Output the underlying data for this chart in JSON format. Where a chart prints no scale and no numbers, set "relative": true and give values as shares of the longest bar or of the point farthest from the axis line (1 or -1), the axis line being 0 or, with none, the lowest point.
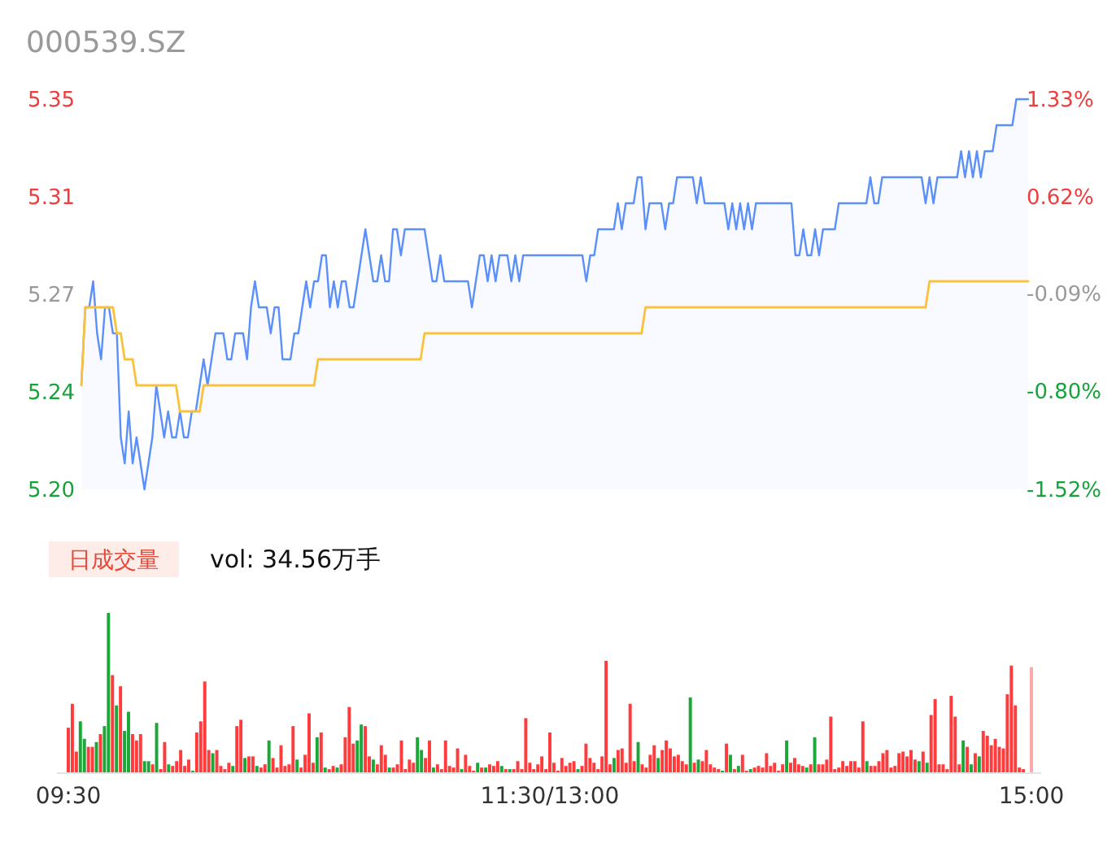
{
  "chart_data": [
    {
      "type": "line",
      "title": "000539.SZ",
      "categories": [
        null,
        null,
        null,
        null,
        null,
        null,
        null,
        null,
        null,
        null,
        null,
        null,
        null,
        null,
        null,
        null,
        null,
        null,
        null,
        null,
        null,
        null,
        null,
        null,
        null,
        null,
        null,
        null,
        null,
        null,
        null,
        null,
        null,
        null,
        null,
        null,
        null,
        null,
        null,
        null,
        null,
        null,
        null,
        null,
        null,
        null,
        null,
        null,
        null,
        null,
        null,
        null,
        null,
        null,
        null,
        null,
        null,
        null,
        null,
        null,
        null,
        null,
        null,
        null,
        null,
        null,
        null,
        null,
        null,
        null,
        null,
        null,
        null,
        null,
        null,
        null,
        null,
        null,
        null,
        null,
        null,
        null,
        null,
        null,
        null,
        null,
        null,
        null,
        null,
        null,
        null,
        null,
        null,
        null,
        null,
        null,
        null,
        null,
        null,
        null,
        null,
        null,
        null,
        null,
        null,
        null,
        null,
        null,
        null,
        null,
        null,
        null,
        null,
        null,
        null,
        null,
        null,
        null,
        null,
        null,
        null,
        null,
        null,
        null,
        null,
        null,
        null,
        null,
        null,
        null,
        null,
        null,
        null,
        null,
        null,
        null,
        null,
        null,
        null,
        null,
        null,
        null,
        null,
        null,
        null,
        null,
        null,
        null,
        null,
        null,
        null,
        null,
        null,
        null,
        null,
        null,
        null,
        null,
        null,
        null,
        null,
        null,
        null,
        null,
        null,
        null,
        null,
        null,
        null,
        null,
        null,
        null,
        null,
        null,
        null,
        null,
        null,
        null,
        null,
        null,
        null,
        null,
        null,
        null,
        null,
        null,
        null,
        null,
        null,
        null,
        null,
        null,
        null,
        null,
        null,
        null,
        null,
        null,
        null,
        null,
        null,
        null,
        null,
        null,
        null,
        null,
        null,
        null,
        null,
        null,
        null,
        null,
        null,
        null,
        null,
        null,
        null,
        null,
        null,
        null,
        null,
        null,
        null,
        null,
        null,
        null,
        null,
        null,
        null,
        null,
        null,
        null,
        null,
        null,
        null,
        null,
        null,
        null,
        null,
        null,
        null
      ],
      "ylim": [
        5.2,
        5.35
      ],
      "yticks": [
        {
          "value": 5.2,
          "label": "5.20"
        },
        {
          "value": 5.2375,
          "label": "5.24"
        },
        {
          "value": 5.275,
          "label": "5.27"
        },
        {
          "value": 5.3125,
          "label": "5.31"
        },
        {
          "value": 5.35,
          "label": "5.35"
        }
      ],
      "y2lim": [
        -1.52,
        1.33
      ],
      "y2ticks": [
        {
          "value": -1.52,
          "label": "-1.52%"
        },
        {
          "value": -0.8,
          "label": "-0.80%"
        },
        {
          "value": -0.09,
          "label": "-0.09%"
        },
        {
          "value": 0.62,
          "label": "0.62%"
        },
        {
          "value": 1.33,
          "label": "1.33%"
        }
      ],
      "series": [
        {
          "type": "area",
          "color": "#5b8ff9",
          "values": [
            5.24,
            5.27,
            5.27,
            5.28,
            5.26,
            5.25,
            5.27,
            5.27,
            5.26,
            5.26,
            5.22,
            5.21,
            5.23,
            5.21,
            5.22,
            5.21,
            5.2,
            5.21,
            5.22,
            5.24,
            5.23,
            5.22,
            5.23,
            5.22,
            5.22,
            5.23,
            5.22,
            5.22,
            5.23,
            5.23,
            5.24,
            5.25,
            5.24,
            5.25,
            5.26,
            5.26,
            5.26,
            5.25,
            5.25,
            5.26,
            5.26,
            5.26,
            5.25,
            5.27,
            5.28,
            5.27,
            5.27,
            5.27,
            5.26,
            5.27,
            5.27,
            5.25,
            5.25,
            5.25,
            5.26,
            5.26,
            5.27,
            5.28,
            5.27,
            5.28,
            5.28,
            5.29,
            5.29,
            5.27,
            5.28,
            5.27,
            5.28,
            5.28,
            5.27,
            5.27,
            5.28,
            5.29,
            5.3,
            5.29,
            5.28,
            5.28,
            5.29,
            5.28,
            5.28,
            5.3,
            5.3,
            5.29,
            5.3,
            5.3,
            5.3,
            5.3,
            5.3,
            5.3,
            5.29,
            5.28,
            5.28,
            5.29,
            5.28,
            5.28,
            5.28,
            5.28,
            5.28,
            5.28,
            5.28,
            5.27,
            5.28,
            5.29,
            5.29,
            5.28,
            5.29,
            5.28,
            5.29,
            5.29,
            5.29,
            5.28,
            5.29,
            5.28,
            5.29,
            5.29,
            5.29,
            5.29,
            5.29,
            5.29,
            5.29,
            5.29,
            5.29,
            5.29,
            5.29,
            5.29,
            5.29,
            5.29,
            5.29,
            5.29,
            5.28,
            5.29,
            5.29,
            5.3,
            5.3,
            5.3,
            5.3,
            5.3,
            5.31,
            5.3,
            5.31,
            5.31,
            5.31,
            5.32,
            5.32,
            5.3,
            5.31,
            5.31,
            5.31,
            5.31,
            5.3,
            5.31,
            5.31,
            5.32,
            5.32,
            5.32,
            5.32,
            5.32,
            5.31,
            5.32,
            5.31,
            5.31,
            5.31,
            5.31,
            5.31,
            5.31,
            5.3,
            5.31,
            5.3,
            5.31,
            5.3,
            5.31,
            5.3,
            5.31,
            5.31,
            5.31,
            5.31,
            5.31,
            5.31,
            5.31,
            5.31,
            5.31,
            5.31,
            5.29,
            5.29,
            5.3,
            5.29,
            5.29,
            5.3,
            5.29,
            5.3,
            5.3,
            5.3,
            5.3,
            5.31,
            5.31,
            5.31,
            5.31,
            5.31,
            5.31,
            5.31,
            5.31,
            5.32,
            5.31,
            5.31,
            5.32,
            5.32,
            5.32,
            5.32,
            5.32,
            5.32,
            5.32,
            5.32,
            5.32,
            5.32,
            5.32,
            5.31,
            5.32,
            5.31,
            5.32,
            5.32,
            5.32,
            5.32,
            5.32,
            5.32,
            5.33,
            5.32,
            5.33,
            5.32,
            5.33,
            5.32,
            5.33,
            5.33,
            5.33,
            5.34,
            5.34,
            5.34,
            5.34,
            5.34,
            5.35,
            5.35,
            5.35,
            5.35
          ]
        },
        {
          "type": "line",
          "color": "#f9c23c",
          "values": [
            5.24,
            5.27,
            5.27,
            5.27,
            5.27,
            5.27,
            5.27,
            5.27,
            5.27,
            5.26,
            5.26,
            5.25,
            5.25,
            5.25,
            5.24,
            5.24,
            5.24,
            5.24,
            5.24,
            5.24,
            5.24,
            5.24,
            5.24,
            5.24,
            5.24,
            5.23,
            5.23,
            5.23,
            5.23,
            5.23,
            5.23,
            5.24,
            5.24,
            5.24,
            5.24,
            5.24,
            5.24,
            5.24,
            5.24,
            5.24,
            5.24,
            5.24,
            5.24,
            5.24,
            5.24,
            5.24,
            5.24,
            5.24,
            5.24,
            5.24,
            5.24,
            5.24,
            5.24,
            5.24,
            5.24,
            5.24,
            5.24,
            5.24,
            5.24,
            5.24,
            5.25,
            5.25,
            5.25,
            5.25,
            5.25,
            5.25,
            5.25,
            5.25,
            5.25,
            5.25,
            5.25,
            5.25,
            5.25,
            5.25,
            5.25,
            5.25,
            5.25,
            5.25,
            5.25,
            5.25,
            5.25,
            5.25,
            5.25,
            5.25,
            5.25,
            5.25,
            5.25,
            5.26,
            5.26,
            5.26,
            5.26,
            5.26,
            5.26,
            5.26,
            5.26,
            5.26,
            5.26,
            5.26,
            5.26,
            5.26,
            5.26,
            5.26,
            5.26,
            5.26,
            5.26,
            5.26,
            5.26,
            5.26,
            5.26,
            5.26,
            5.26,
            5.26,
            5.26,
            5.26,
            5.26,
            5.26,
            5.26,
            5.26,
            5.26,
            5.26,
            5.26,
            5.26,
            5.26,
            5.26,
            5.26,
            5.26,
            5.26,
            5.26,
            5.26,
            5.26,
            5.26,
            5.26,
            5.26,
            5.26,
            5.26,
            5.26,
            5.26,
            5.26,
            5.26,
            5.26,
            5.26,
            5.26,
            5.26,
            5.27,
            5.27,
            5.27,
            5.27,
            5.27,
            5.27,
            5.27,
            5.27,
            5.27,
            5.27,
            5.27,
            5.27,
            5.27,
            5.27,
            5.27,
            5.27,
            5.27,
            5.27,
            5.27,
            5.27,
            5.27,
            5.27,
            5.27,
            5.27,
            5.27,
            5.27,
            5.27,
            5.27,
            5.27,
            5.27,
            5.27,
            5.27,
            5.27,
            5.27,
            5.27,
            5.27,
            5.27,
            5.27,
            5.27,
            5.27,
            5.27,
            5.27,
            5.27,
            5.27,
            5.27,
            5.27,
            5.27,
            5.27,
            5.27,
            5.27,
            5.27,
            5.27,
            5.27,
            5.27,
            5.27,
            5.27,
            5.27,
            5.27,
            5.27,
            5.27,
            5.27,
            5.27,
            5.27,
            5.27,
            5.27,
            5.27,
            5.27,
            5.27,
            5.27,
            5.27,
            5.27,
            5.27,
            5.28,
            5.28,
            5.28,
            5.28,
            5.28,
            5.28,
            5.28,
            5.28,
            5.28,
            5.28,
            5.28,
            5.28,
            5.28,
            5.28,
            5.28,
            5.28,
            5.28,
            5.28,
            5.28,
            5.28,
            5.28,
            5.28,
            5.28,
            5.28,
            5.28,
            5.28
          ]
        }
      ]
    },
    {
      "type": "bar",
      "title": "日成交量",
      "subtitle": "vol: 34.56万手",
      "relative": true,
      "tick_labels": "x",
      "categories": [
        "09:30",
        null,
        null,
        null,
        null,
        null,
        null,
        null,
        null,
        null,
        null,
        null,
        null,
        null,
        null,
        null,
        null,
        null,
        null,
        null,
        null,
        null,
        null,
        null,
        null,
        null,
        null,
        null,
        null,
        null,
        null,
        null,
        null,
        null,
        null,
        null,
        null,
        null,
        null,
        null,
        null,
        null,
        null,
        null,
        null,
        null,
        null,
        null,
        null,
        null,
        null,
        null,
        null,
        null,
        null,
        null,
        null,
        null,
        null,
        null,
        null,
        null,
        null,
        null,
        null,
        null,
        null,
        null,
        null,
        null,
        null,
        null,
        null,
        null,
        null,
        null,
        null,
        null,
        null,
        null,
        null,
        null,
        null,
        null,
        null,
        null,
        null,
        null,
        null,
        null,
        null,
        null,
        null,
        null,
        null,
        null,
        null,
        null,
        null,
        null,
        null,
        null,
        null,
        null,
        null,
        null,
        null,
        null,
        null,
        null,
        null,
        null,
        null,
        null,
        null,
        null,
        null,
        null,
        null,
        null,
        "11:30/13:00",
        null,
        null,
        null,
        null,
        null,
        null,
        null,
        null,
        null,
        null,
        null,
        null,
        null,
        null,
        null,
        null,
        null,
        null,
        null,
        null,
        null,
        null,
        null,
        null,
        null,
        null,
        null,
        null,
        null,
        null,
        null,
        null,
        null,
        null,
        null,
        null,
        null,
        null,
        null,
        null,
        null,
        null,
        null,
        null,
        null,
        null,
        null,
        null,
        null,
        null,
        null,
        null,
        null,
        null,
        null,
        null,
        null,
        null,
        null,
        null,
        null,
        null,
        null,
        null,
        null,
        null,
        null,
        null,
        null,
        null,
        null,
        null,
        null,
        null,
        null,
        null,
        null,
        null,
        null,
        null,
        null,
        null,
        null,
        null,
        null,
        null,
        null,
        null,
        null,
        null,
        null,
        null,
        null,
        null,
        null,
        null,
        null,
        null,
        null,
        null,
        null,
        null,
        null,
        null,
        null,
        null,
        null,
        null,
        null,
        null,
        null,
        null,
        null,
        null,
        null,
        null,
        null,
        null,
        null,
        "15:00"
      ],
      "values": [
        0.28,
        0.43,
        0.13,
        0.32,
        0.21,
        0.16,
        0.16,
        0.19,
        0.24,
        0.29,
        1,
        0.61,
        0.42,
        0.54,
        0.26,
        0.38,
        0.24,
        0.2,
        0.24,
        0.07,
        0.07,
        0.05,
        0.31,
        0.02,
        0.19,
        0.05,
        0.04,
        0.07,
        0.14,
        0.04,
        0.08,
        0.01,
        0.25,
        0.32,
        0.57,
        0.14,
        0.12,
        0.14,
        0.04,
        0.02,
        0.06,
        0.04,
        0.29,
        0.33,
        0.09,
        0.1,
        0.1,
        0.04,
        0.03,
        0.05,
        0.2,
        0.09,
        0.03,
        0.17,
        0.04,
        0.05,
        0.29,
        0.08,
        0.03,
        0.11,
        0.37,
        0.06,
        0.22,
        0.25,
        0.03,
        0.02,
        0.04,
        0.03,
        0.05,
        0.22,
        0.41,
        0.18,
        0.2,
        0.3,
        0.29,
        0.1,
        0.08,
        0.05,
        0.17,
        0.11,
        0.03,
        0.03,
        0.05,
        0.2,
        0.02,
        0.08,
        0.06,
        0.22,
        0.14,
        0.09,
        0.2,
        0.03,
        0.05,
        0.02,
        0.2,
        0.04,
        0.03,
        0.15,
        0.02,
        0.11,
        0.04,
        0.01,
        0.06,
        0.03,
        0.03,
        0.05,
        0.04,
        0.07,
        0.04,
        0.02,
        0.02,
        0.02,
        0.07,
        0.02,
        0.34,
        0.06,
        0.02,
        0.05,
        0.1,
        0.02,
        0.25,
        0.06,
        0.01,
        0.09,
        0.04,
        0.06,
        0.07,
        0.02,
        0.04,
        0.18,
        0.09,
        0.06,
        0.02,
        0.1,
        0.7,
        0.05,
        0.09,
        0.14,
        0.15,
        0.06,
        0.43,
        0.07,
        0.19,
        0.05,
        0.03,
        0.11,
        0.17,
        0.09,
        0.14,
        0.2,
        0.15,
        0.1,
        0.11,
        0.07,
        0.05,
        0.47,
        0.06,
        0.08,
        0.07,
        0.14,
        0.05,
        0.03,
        0.02,
        0.01,
        0.18,
        0.11,
        0.02,
        0.04,
        0.11,
        0.01,
        0.02,
        0.03,
        0.04,
        0.03,
        0.12,
        0.04,
        0.06,
        0.01,
        0.05,
        0.2,
        0.06,
        0.09,
        0.05,
        0.04,
        0.03,
        0.05,
        0.22,
        0.05,
        0.05,
        0.08,
        0.35,
        0.02,
        0.03,
        0.07,
        0.04,
        0.07,
        0.07,
        0.03,
        0.32,
        0.07,
        0.04,
        0.04,
        0.07,
        0.12,
        0.14,
        0.03,
        0.04,
        0.12,
        0.13,
        0.1,
        0.14,
        0.08,
        0.07,
        0.13,
        0.06,
        0.36,
        0.46,
        0.05,
        0.05,
        0.02,
        0.48,
        0.35,
        0.05,
        0.2,
        0.16,
        0.05,
        0.12,
        0.1,
        0.26,
        0.23,
        0.17,
        0.21,
        0.16,
        0.15,
        0.49,
        0.67,
        0.42,
        0.03,
        0.02,
        null,
        0.66
      ],
      "colors": [
        "#ff3b3b",
        "#ff3b3b",
        "#ff3b3b",
        "#1ca838",
        "#1ca838",
        "#ff3b3b",
        "#ff3b3b",
        "#1ca838",
        "#ff3b3b",
        "#1ca838",
        "#1ca838",
        "#ff3b3b",
        "#1ca838",
        "#ff3b3b",
        "#1ca838",
        "#1ca838",
        "#ff3b3b",
        "#ff3b3b",
        "#ff3b3b",
        "#1ca838",
        "#1ca838",
        "#ff3b3b",
        "#1ca838",
        "#ff3b3b",
        "#ff3b3b",
        "#1ca838",
        "#ff3b3b",
        "#ff3b3b",
        "#ff3b3b",
        "#ff3b3b",
        "#ff3b3b",
        "#1ca838",
        "#ff3b3b",
        "#ff3b3b",
        "#ff3b3b",
        "#ff3b3b",
        "#1ca838",
        "#ff3b3b",
        "#ff3b3b",
        "#ff3b3b",
        "#ff3b3b",
        "#1ca838",
        "#ff3b3b",
        "#ff3b3b",
        "#1ca838",
        "#ff3b3b",
        "#ff3b3b",
        "#1ca838",
        "#ff3b3b",
        "#ff3b3b",
        "#1ca838",
        "#ff3b3b",
        "#ff3b3b",
        "#ff3b3b",
        "#ff3b3b",
        "#ff3b3b",
        "#ff3b3b",
        "#1ca838",
        "#ff3b3b",
        "#ff3b3b",
        "#ff3b3b",
        "#ff3b3b",
        "#1ca838",
        "#ff3b3b",
        "#1ca838",
        "#ff3b3b",
        "#ff3b3b",
        "#1ca838",
        "#ff3b3b",
        "#ff3b3b",
        "#ff3b3b",
        "#ff3b3b",
        "#1ca838",
        "#1ca838",
        "#ff3b3b",
        "#ff3b3b",
        "#1ca838",
        "#ff3b3b",
        "#ff3b3b",
        "#ff3b3b",
        "#1ca838",
        "#ff3b3b",
        "#ff3b3b",
        "#ff3b3b",
        "#ff3b3b",
        "#ff3b3b",
        "#ff3b3b",
        "#1ca838",
        "#1ca838",
        "#ff3b3b",
        "#ff3b3b",
        "#1ca838",
        "#ff3b3b",
        "#ff3b3b",
        "#ff3b3b",
        "#ff3b3b",
        "#ff3b3b",
        "#ff3b3b",
        "#1ca838",
        "#ff3b3b",
        "#ff3b3b",
        "#ff3b3b",
        "#1ca838",
        "#ff3b3b",
        "#1ca838",
        "#ff3b3b",
        "#ff3b3b",
        "#ff3b3b",
        "#1ca838",
        "#ff3b3b",
        "#1ca838",
        "#ff3b3b",
        "#ff3b3b",
        "#ff3b3b",
        "#ff3b3b",
        "#ff3b3b",
        "#ff3b3b",
        "#ff3b3b",
        "#ff3b3b",
        "#ff3b3b",
        "#ff3b3b",
        "#ff3b3b",
        "#ff3b3b",
        "#ff3b3b",
        "#ff3b3b",
        "#ff3b3b",
        "#ff3b3b",
        "#1ca838",
        "#ff3b3b",
        "#ff3b3b",
        "#ff3b3b",
        "#ff3b3b",
        "#ff3b3b",
        "#ff3b3b",
        "#ff3b3b",
        "#ff3b3b",
        "#1ca838",
        "#ff3b3b",
        "#ff3b3b",
        "#ff3b3b",
        "#ff3b3b",
        "#ff3b3b",
        "#1ca838",
        "#ff3b3b",
        "#ff3b3b",
        "#ff3b3b",
        "#ff3b3b",
        "#1ca838",
        "#ff3b3b",
        "#ff3b3b",
        "#ff3b3b",
        "#ff3b3b",
        "#ff3b3b",
        "#ff3b3b",
        "#ff3b3b",
        "#1ca838",
        "#ff3b3b",
        "#1ca838",
        "#ff3b3b",
        "#ff3b3b",
        "#ff3b3b",
        "#ff3b3b",
        "#ff3b3b",
        "#1ca838",
        "#ff3b3b",
        "#1ca838",
        "#ff3b3b",
        "#1ca838",
        "#ff3b3b",
        "#ff3b3b",
        "#1ca838",
        "#ff3b3b",
        "#ff3b3b",
        "#ff3b3b",
        "#ff3b3b",
        "#ff3b3b",
        "#ff3b3b",
        "#ff3b3b",
        "#ff3b3b",
        "#1ca838",
        "#ff3b3b",
        "#ff3b3b",
        "#ff3b3b",
        "#ff3b3b",
        "#1ca838",
        "#ff3b3b",
        "#1ca838",
        "#ff3b3b",
        "#ff3b3b",
        "#ff3b3b",
        "#ff3b3b",
        "#ff3b3b",
        "#ff3b3b",
        "#ff3b3b",
        "#ff3b3b",
        "#ff3b3b",
        "#ff3b3b",
        "#ff3b3b",
        "#ff3b3b",
        "#1ca838",
        "#ff3b3b",
        "#ff3b3b",
        "#ff3b3b",
        "#ff3b3b",
        "#ff3b3b",
        "#ff3b3b",
        "#ff3b3b",
        "#ff3b3b",
        "#ff3b3b",
        "#ff3b3b",
        "#ff3b3b",
        "#ff3b3b",
        "#1ca838",
        "#ff3b3b",
        "#1ca838",
        "#ff3b3b",
        "#ff3b3b",
        "#ff3b3b",
        "#ff3b3b",
        "#ff3b3b",
        "#ff3b3b",
        "#ff3b3b",
        "#ff3b3b",
        "#1ca838",
        "#ff3b3b",
        "#1ca838",
        "#ff3b3b",
        "#1ca838",
        "#ff3b3b",
        "#ff3b3b",
        "#ff3b3b",
        "#ff3b3b",
        "#ff3b3b",
        "#ff3b3b",
        "#ff3b3b",
        "#ff3b3b",
        "#ff3b3b",
        "#ff3b3b",
        "#ff3b3b",
        null,
        "#ffa8a8"
      ]
    }
  ]
}
